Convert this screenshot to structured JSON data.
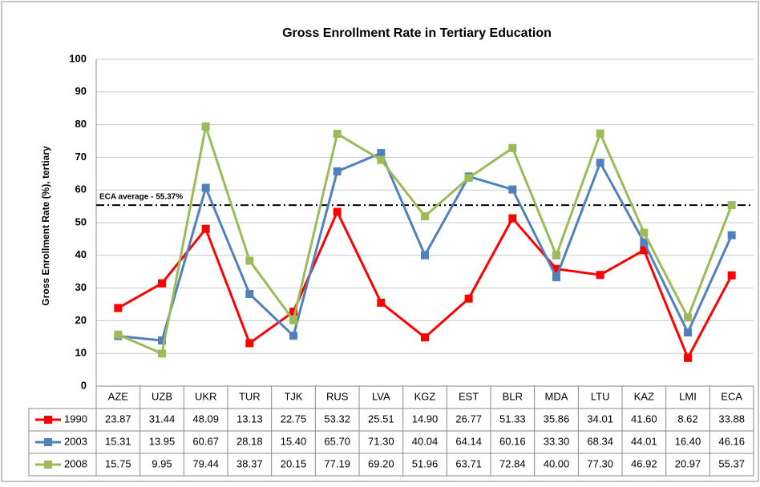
{
  "chart_data": {
    "type": "line",
    "title": "Gross Enrollment Rate in Tertiary Education",
    "y_label": "Gross Enrollment Rate (%), tertiary",
    "categories": [
      "AZE",
      "UZB",
      "UKR",
      "TUR",
      "TJK",
      "RUS",
      "LVA",
      "KGZ",
      "EST",
      "BLR",
      "MDA",
      "LTU",
      "KAZ",
      "LMI",
      "ECA"
    ],
    "series": [
      {
        "name": "1990",
        "color": "#ff0000",
        "values": [
          23.87,
          31.44,
          48.09,
          13.13,
          22.75,
          53.32,
          25.51,
          14.9,
          26.77,
          51.33,
          35.86,
          34.01,
          41.6,
          8.62,
          33.88
        ],
        "value_labels": [
          "23.87",
          "31.44",
          "48.09",
          "13.13",
          "22.75",
          "53.32",
          "25.51",
          "14.90",
          "26.77",
          "51.33",
          "35.86",
          "34.01",
          "41.60",
          "8.62",
          "33.88"
        ]
      },
      {
        "name": "2003",
        "color": "#4f81bd",
        "values": [
          15.31,
          13.95,
          60.67,
          28.18,
          15.4,
          65.7,
          71.3,
          40.04,
          64.14,
          60.16,
          33.3,
          68.34,
          44.01,
          16.4,
          46.16
        ],
        "value_labels": [
          "15.31",
          "13.95",
          "60.67",
          "28.18",
          "15.40",
          "65.70",
          "71.30",
          "40.04",
          "64.14",
          "60.16",
          "33.30",
          "68.34",
          "44.01",
          "16.40",
          "46.16"
        ]
      },
      {
        "name": "2008",
        "color": "#9bbb59",
        "values": [
          15.75,
          9.95,
          79.44,
          38.37,
          20.15,
          77.19,
          69.2,
          51.96,
          63.71,
          72.84,
          40,
          77.3,
          46.92,
          20.97,
          55.37
        ],
        "value_labels": [
          "15.75",
          "9.95",
          "79.44",
          "38.37",
          "20.15",
          "77.19",
          "69.20",
          "51.96",
          "63.71",
          "72.84",
          "40.00",
          "77.30",
          "46.92",
          "20.97",
          "55.37"
        ]
      }
    ],
    "reference_line": {
      "value": 55.37,
      "label": "ECA average - 55.37%"
    },
    "ylim": [
      0,
      100
    ],
    "yticks": [
      0,
      10,
      20,
      30,
      40,
      50,
      60,
      70,
      80,
      90,
      100
    ],
    "grid": true
  }
}
